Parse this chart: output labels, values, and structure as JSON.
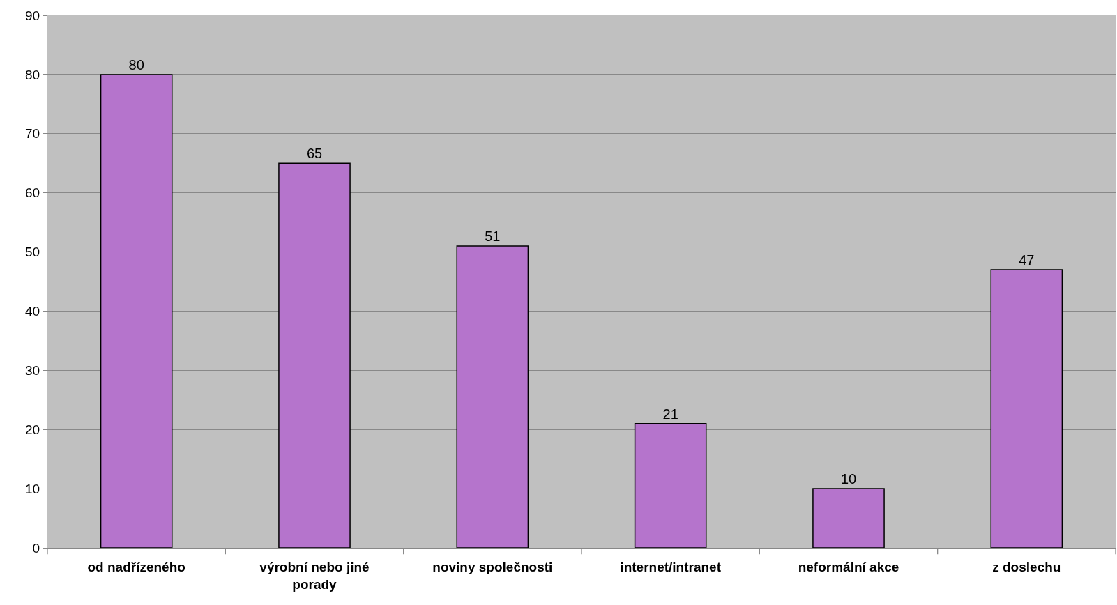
{
  "chart_data": {
    "type": "bar",
    "categories": [
      "od nadřízeného",
      "výrobní nebo jiné porady",
      "noviny společnosti",
      "internet/intranet",
      "neformální akce",
      "z doslechu"
    ],
    "values": [
      80,
      65,
      51,
      21,
      10,
      47
    ],
    "color": "#b574cc",
    "data_labels": true,
    "ylim": [
      0,
      90
    ],
    "yticks": [
      0,
      10,
      20,
      30,
      40,
      50,
      60,
      70,
      80,
      90
    ],
    "grid": "y"
  }
}
